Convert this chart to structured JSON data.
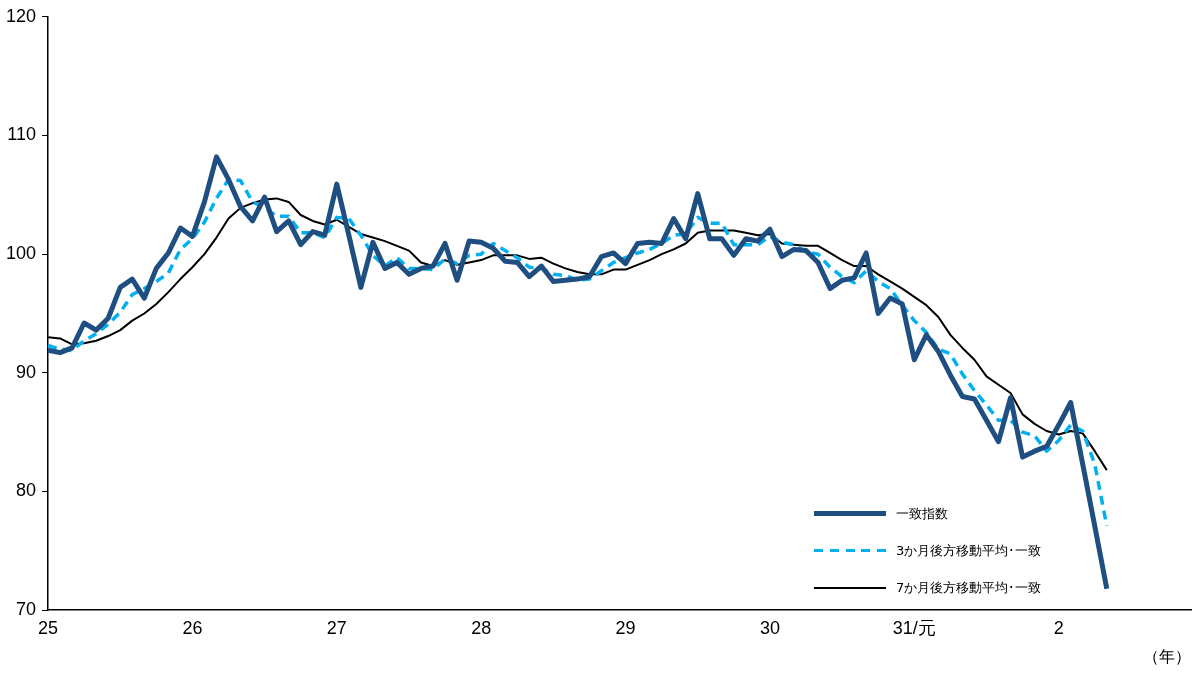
{
  "chart_data": {
    "type": "line",
    "xlabel": "（年）",
    "categories": [
      "25",
      null,
      null,
      null,
      null,
      null,
      null,
      null,
      null,
      null,
      null,
      null,
      "26",
      null,
      null,
      null,
      null,
      null,
      null,
      null,
      null,
      null,
      null,
      null,
      "27",
      null,
      null,
      null,
      null,
      null,
      null,
      null,
      null,
      null,
      null,
      null,
      "28",
      null,
      null,
      null,
      null,
      null,
      null,
      null,
      null,
      null,
      null,
      null,
      "29",
      null,
      null,
      null,
      null,
      null,
      null,
      null,
      null,
      null,
      null,
      null,
      "30",
      null,
      null,
      null,
      null,
      null,
      null,
      null,
      null,
      null,
      null,
      null,
      "31/元",
      null,
      null,
      null,
      null,
      null,
      null,
      null,
      null,
      null,
      null,
      null,
      "2",
      null,
      null,
      null,
      null,
      null,
      null,
      null,
      null,
      null,
      null,
      null
    ],
    "series": [
      {
        "name": "一致指数",
        "color": "#1f4e80",
        "line_style": "solid",
        "values": [
          91.9,
          91.7,
          92.1,
          94.2,
          93.6,
          94.6,
          97.2,
          97.9,
          96.3,
          98.8,
          100.1,
          102.2,
          101.5,
          104.4,
          108.2,
          106.3,
          104.0,
          102.8,
          104.8,
          101.9,
          102.8,
          100.8,
          101.9,
          101.6,
          105.9,
          101.6,
          97.2,
          101.0,
          98.8,
          99.3,
          98.3,
          98.8,
          99.0,
          100.9,
          97.8,
          101.1,
          101.0,
          100.5,
          99.4,
          99.3,
          98.1,
          99.0,
          97.7,
          97.8,
          97.9,
          98.1,
          99.8,
          100.1,
          99.2,
          100.9,
          101.0,
          100.9,
          103.0,
          101.3,
          105.1,
          101.3,
          101.3,
          99.9,
          101.3,
          101.1,
          102.1,
          99.8,
          100.4,
          100.3,
          99.3,
          97.1,
          97.8,
          98.0,
          100.1,
          95.0,
          96.3,
          95.8,
          91.1,
          93.2,
          91.8,
          89.8,
          88.0,
          87.8,
          86.0,
          84.2,
          87.9,
          82.9,
          83.4,
          83.8,
          85.6,
          87.5,
          82.3,
          77.1,
          71.8,
          null,
          null,
          null,
          null,
          null,
          null,
          null
        ]
      },
      {
        "name": "3か月後方移動平均･一致",
        "color": "#00b0f0",
        "line_style": "dashed",
        "values": [
          92.3,
          92.0,
          91.9,
          92.7,
          93.3,
          94.1,
          95.1,
          96.6,
          97.1,
          97.7,
          98.4,
          100.4,
          101.3,
          102.7,
          104.7,
          106.3,
          106.2,
          104.4,
          103.9,
          103.2,
          103.2,
          101.8,
          101.8,
          101.4,
          103.1,
          103.0,
          101.6,
          99.9,
          99.0,
          99.7,
          98.8,
          98.8,
          98.7,
          99.6,
          99.2,
          99.9,
          100.0,
          100.9,
          100.3,
          99.7,
          98.9,
          98.8,
          98.3,
          98.2,
          97.8,
          97.9,
          98.6,
          99.3,
          99.7,
          100.1,
          100.4,
          100.9,
          101.6,
          101.7,
          103.1,
          102.6,
          102.6,
          100.8,
          100.8,
          100.8,
          101.5,
          101.0,
          100.8,
          100.2,
          100.0,
          98.9,
          98.1,
          97.6,
          98.6,
          97.7,
          97.1,
          95.7,
          94.4,
          93.4,
          92.0,
          91.6,
          89.9,
          88.5,
          87.3,
          86.0,
          86.0,
          85.0,
          84.7,
          83.4,
          84.3,
          85.6,
          85.1,
          82.3,
          77.1,
          null,
          null,
          null,
          null,
          null,
          null,
          null
        ]
      },
      {
        "name": "7か月後方移動平均･一致",
        "color": "#000000",
        "line_style": "solid",
        "values": [
          93.0,
          92.9,
          92.4,
          92.5,
          92.7,
          93.1,
          93.6,
          94.4,
          95.0,
          95.8,
          96.8,
          97.9,
          98.9,
          100.0,
          101.4,
          103.0,
          103.9,
          104.3,
          104.6,
          104.7,
          104.4,
          103.3,
          102.8,
          102.5,
          102.9,
          102.3,
          101.7,
          101.4,
          101.1,
          100.7,
          100.3,
          99.3,
          99.0,
          99.5,
          99.1,
          99.3,
          99.5,
          99.9,
          99.9,
          99.9,
          99.6,
          99.7,
          99.2,
          98.8,
          98.5,
          98.3,
          98.3,
          98.7,
          98.7,
          99.1,
          99.5,
          100.0,
          100.4,
          100.9,
          101.8,
          102.0,
          102.0,
          102.0,
          101.8,
          101.6,
          101.7,
          100.9,
          100.8,
          100.7,
          100.7,
          100.1,
          99.5,
          99.0,
          99.0,
          98.3,
          97.7,
          97.1,
          96.4,
          95.7,
          94.7,
          93.2,
          92.1,
          91.1,
          89.7,
          89.0,
          88.3,
          86.5,
          85.7,
          85.1,
          84.8,
          85.1,
          84.9,
          83.4,
          81.8,
          null,
          null,
          null,
          null,
          null,
          null,
          null
        ]
      }
    ],
    "ylim": [
      70,
      120
    ],
    "yticks": [
      70,
      80,
      90,
      100,
      110,
      120
    ],
    "legend": "bottom right",
    "marker": "none"
  }
}
